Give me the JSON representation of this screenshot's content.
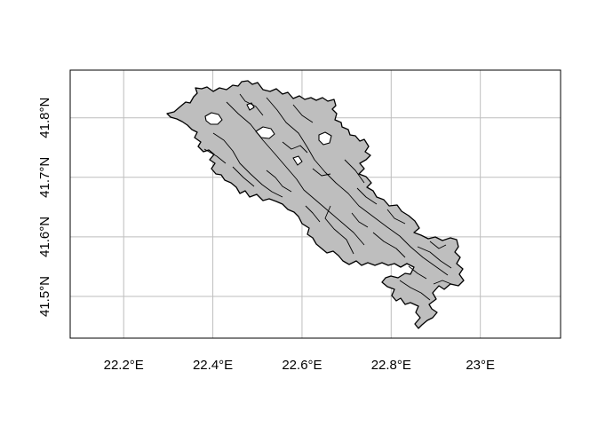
{
  "map": {
    "x_axis": {
      "ticks": [
        {
          "value": 22.2,
          "label": "22.2°E"
        },
        {
          "value": 22.4,
          "label": "22.4°E"
        },
        {
          "value": 22.6,
          "label": "22.6°E"
        },
        {
          "value": 22.8,
          "label": "22.8°E"
        },
        {
          "value": 23.0,
          "label": "23°E"
        }
      ],
      "range": [
        22.08,
        23.18
      ]
    },
    "y_axis": {
      "ticks": [
        {
          "value": 41.5,
          "label": "41.5°N"
        },
        {
          "value": 41.6,
          "label": "41.6°N"
        },
        {
          "value": 41.7,
          "label": "41.7°N"
        },
        {
          "value": 41.8,
          "label": "41.8°N"
        }
      ],
      "range": [
        41.43,
        41.88
      ]
    },
    "grid": true,
    "colors": {
      "fill": "#bebebe",
      "outline": "#000000",
      "grid": "#bebebe"
    }
  }
}
